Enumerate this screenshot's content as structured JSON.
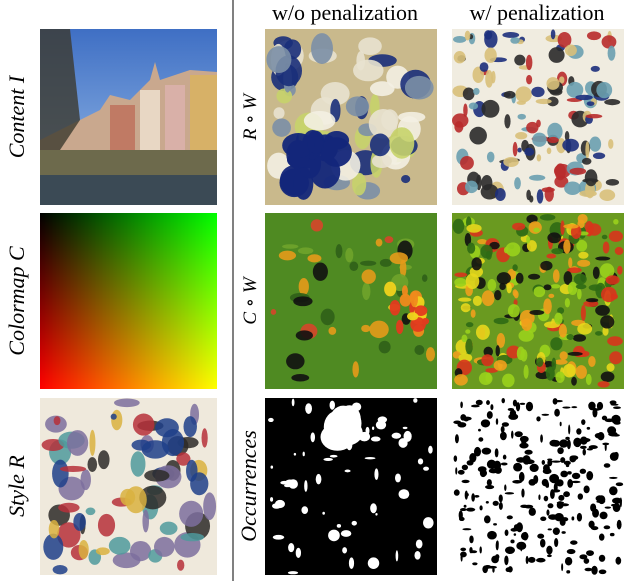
{
  "columns": [
    "w/o penalization",
    "w/ penalization"
  ],
  "left_labels": [
    "Content I",
    "Colormap C",
    "Style R"
  ],
  "row_labels": [
    "R ∘ W",
    "C ∘ W",
    "Occurrences"
  ]
}
